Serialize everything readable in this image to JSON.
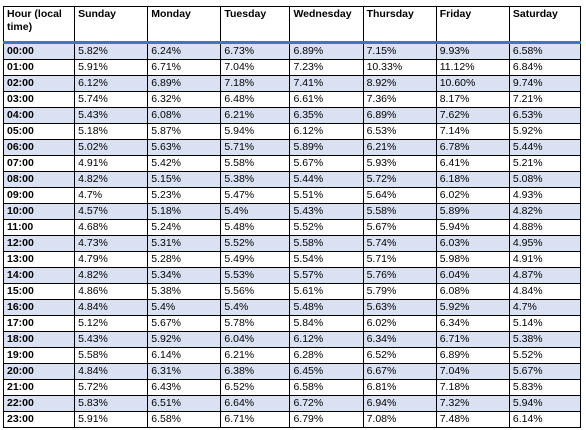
{
  "table": {
    "headers": [
      "Hour (local time)",
      "Sunday",
      "Monday",
      "Tuesday",
      "Wednesday",
      "Thursday",
      "Friday",
      "Saturday"
    ],
    "rows": [
      [
        "00:00",
        "5.82%",
        "6.24%",
        "6.73%",
        "6.89%",
        "7.15%",
        "9.93%",
        "6.58%"
      ],
      [
        "01:00",
        "5.91%",
        "6.71%",
        "7.04%",
        "7.23%",
        "10.33%",
        "11.12%",
        "6.84%"
      ],
      [
        "02:00",
        "6.12%",
        "6.89%",
        "7.18%",
        "7.41%",
        "8.92%",
        "10.60%",
        "9.74%"
      ],
      [
        "03:00",
        "5.74%",
        "6.32%",
        "6.48%",
        "6.61%",
        "7.36%",
        "8.17%",
        "7.21%"
      ],
      [
        "04:00",
        "5.43%",
        "6.08%",
        "6.21%",
        "6.35%",
        "6.89%",
        "7.62%",
        "6.53%"
      ],
      [
        "05:00",
        "5.18%",
        "5.87%",
        "5.94%",
        "6.12%",
        "6.53%",
        "7.14%",
        "5.92%"
      ],
      [
        "06:00",
        "5.02%",
        "5.63%",
        "5.71%",
        "5.89%",
        "6.21%",
        "6.78%",
        "5.44%"
      ],
      [
        "07:00",
        "4.91%",
        "5.42%",
        "5.58%",
        "5.67%",
        "5.93%",
        "6.41%",
        "5.21%"
      ],
      [
        "08:00",
        "4.82%",
        "5.15%",
        "5.38%",
        "5.44%",
        "5.72%",
        "6.18%",
        "5.08%"
      ],
      [
        "09:00",
        "4.7%",
        "5.23%",
        "5.47%",
        "5.51%",
        "5.64%",
        "6.02%",
        "4.93%"
      ],
      [
        "10:00",
        "4.57%",
        "5.18%",
        "5.4%",
        "5.43%",
        "5.58%",
        "5.89%",
        "4.82%"
      ],
      [
        "11:00",
        "4.68%",
        "5.24%",
        "5.48%",
        "5.52%",
        "5.67%",
        "5.94%",
        "4.88%"
      ],
      [
        "12:00",
        "4.73%",
        "5.31%",
        "5.52%",
        "5.58%",
        "5.74%",
        "6.03%",
        "4.95%"
      ],
      [
        "13:00",
        "4.79%",
        "5.28%",
        "5.49%",
        "5.54%",
        "5.71%",
        "5.98%",
        "4.91%"
      ],
      [
        "14:00",
        "4.82%",
        "5.34%",
        "5.53%",
        "5.57%",
        "5.76%",
        "6.04%",
        "4.87%"
      ],
      [
        "15:00",
        "4.86%",
        "5.38%",
        "5.56%",
        "5.61%",
        "5.79%",
        "6.08%",
        "4.84%"
      ],
      [
        "16:00",
        "4.84%",
        "5.4%",
        "5.4%",
        "5.48%",
        "5.63%",
        "5.92%",
        "4.7%"
      ],
      [
        "17:00",
        "5.12%",
        "5.67%",
        "5.78%",
        "5.84%",
        "6.02%",
        "6.34%",
        "5.14%"
      ],
      [
        "18:00",
        "5.43%",
        "5.92%",
        "6.04%",
        "6.12%",
        "6.34%",
        "6.71%",
        "5.38%"
      ],
      [
        "19:00",
        "5.58%",
        "6.14%",
        "6.21%",
        "6.28%",
        "6.52%",
        "6.89%",
        "5.52%"
      ],
      [
        "20:00",
        "4.84%",
        "6.31%",
        "6.38%",
        "6.45%",
        "6.67%",
        "7.04%",
        "5.67%"
      ],
      [
        "21:00",
        "5.72%",
        "6.43%",
        "6.52%",
        "6.58%",
        "6.81%",
        "7.18%",
        "5.83%"
      ],
      [
        "22:00",
        "5.83%",
        "6.51%",
        "6.64%",
        "6.72%",
        "6.94%",
        "7.32%",
        "5.94%"
      ],
      [
        "23:00",
        "5.91%",
        "6.58%",
        "6.71%",
        "6.79%",
        "7.08%",
        "7.48%",
        "6.14%"
      ]
    ]
  },
  "colors": {
    "banded_row": "#d9e1f2",
    "header_rule": "#4472c4",
    "border": "#000000"
  }
}
